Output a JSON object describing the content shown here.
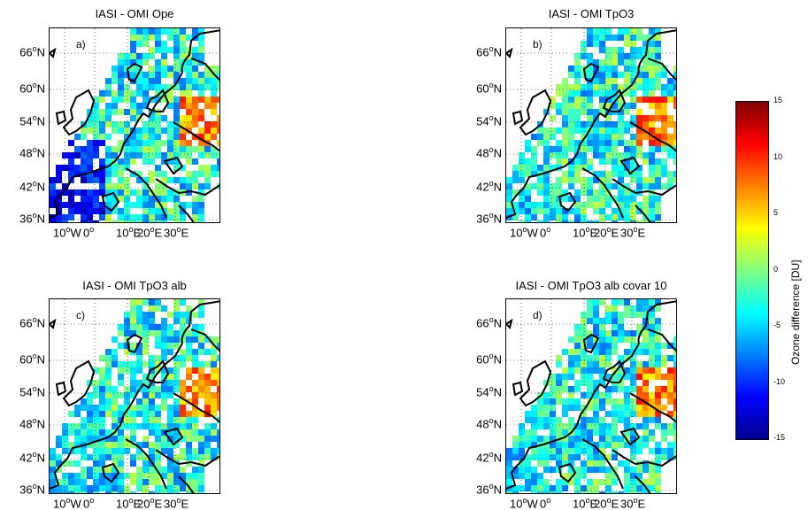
{
  "panels": [
    {
      "title": "IASI - OMI Ope",
      "letter": "a)"
    },
    {
      "title": "IASI - OMI TpO3",
      "letter": "b)"
    },
    {
      "title": "IASI - OMI TpO3 alb",
      "letter": "c)"
    },
    {
      "title": "IASI - OMI TpO3 alb covar 10",
      "letter": "d)"
    }
  ],
  "y_ticks": [
    "66",
    "60",
    "54",
    "48",
    "42",
    "36"
  ],
  "y_suffix": "N",
  "x_ticks": [
    {
      "value": "10",
      "suffix": "W"
    },
    {
      "value": "0",
      "suffix": ""
    },
    {
      "value": "10",
      "suffix": "E"
    },
    {
      "value": "20",
      "suffix": "E"
    },
    {
      "value": "30",
      "suffix": "E"
    }
  ],
  "degree_symbol": "o",
  "colorbar": {
    "label": "Ozone difference [DU]",
    "ticks": [
      "15",
      "10",
      "5",
      "0",
      "-5",
      "-10",
      "-15"
    ],
    "range": [
      -15,
      15
    ],
    "colormap": [
      "#00008f",
      "#0000ff",
      "#0080ff",
      "#00ffff",
      "#80ff80",
      "#ffff00",
      "#ff8000",
      "#ff0000",
      "#800000"
    ]
  }
}
